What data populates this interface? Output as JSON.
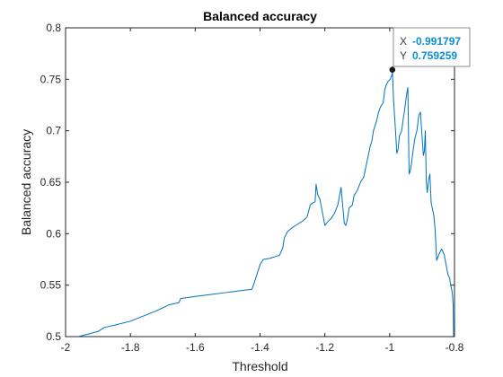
{
  "chart_data": {
    "type": "line",
    "title": "Balanced accuracy",
    "xlabel": "Threshold",
    "ylabel": "Balanced accuracy",
    "xlim": [
      -2,
      -0.8
    ],
    "ylim": [
      0.5,
      0.8
    ],
    "xticks": [
      -2,
      -1.8,
      -1.6,
      -1.4,
      -1.2,
      -1,
      -0.8
    ],
    "xtick_labels": [
      "-2",
      "-1.8",
      "-1.6",
      "-1.4",
      "-1.2",
      "-1",
      "-0.8"
    ],
    "yticks": [
      0.5,
      0.55,
      0.6,
      0.65,
      0.7,
      0.75,
      0.8
    ],
    "ytick_labels": [
      "0.5",
      "0.55",
      "0.6",
      "0.65",
      "0.7",
      "0.75",
      "0.8"
    ],
    "grid": false,
    "line_color": "#0072bd",
    "series": [
      {
        "x": [
          -1.96,
          -1.9,
          -1.88,
          -1.85,
          -1.8,
          -1.76,
          -1.72,
          -1.68,
          -1.65,
          -1.645,
          -1.6,
          -1.55,
          -1.5,
          -1.45,
          -1.425,
          -1.415,
          -1.4,
          -1.39,
          -1.37,
          -1.35,
          -1.34,
          -1.33,
          -1.325,
          -1.315,
          -1.3,
          -1.285,
          -1.27,
          -1.255,
          -1.25,
          -1.245,
          -1.237,
          -1.23,
          -1.227,
          -1.222,
          -1.215,
          -1.21,
          -1.2,
          -1.19,
          -1.18,
          -1.17,
          -1.16,
          -1.15,
          -1.14,
          -1.135,
          -1.13,
          -1.125,
          -1.115,
          -1.11,
          -1.1,
          -1.09,
          -1.08,
          -1.07,
          -1.06,
          -1.055,
          -1.05,
          -1.04,
          -1.035,
          -1.03,
          -1.025,
          -1.02,
          -1.015,
          -1.01,
          -1.005,
          -0.998,
          -0.996,
          -0.993,
          -0.991797,
          -0.988,
          -0.982,
          -0.978,
          -0.974,
          -0.97,
          -0.963,
          -0.958,
          -0.955,
          -0.952,
          -0.948,
          -0.944,
          -0.94,
          -0.935,
          -0.928,
          -0.922,
          -0.916,
          -0.91,
          -0.905,
          -0.9,
          -0.896,
          -0.893,
          -0.89,
          -0.887,
          -0.884,
          -0.88,
          -0.876,
          -0.872,
          -0.868,
          -0.864,
          -0.86,
          -0.855,
          -0.848,
          -0.84,
          -0.832,
          -0.826,
          -0.82,
          -0.815,
          -0.812,
          -0.808,
          -0.806,
          -0.804,
          -0.803
        ],
        "y": [
          0.5,
          0.505,
          0.509,
          0.511,
          0.515,
          0.52,
          0.525,
          0.531,
          0.533,
          0.537,
          0.539,
          0.541,
          0.543,
          0.545,
          0.546,
          0.555,
          0.57,
          0.575,
          0.576,
          0.578,
          0.579,
          0.586,
          0.596,
          0.602,
          0.606,
          0.609,
          0.612,
          0.616,
          0.622,
          0.628,
          0.63,
          0.631,
          0.648,
          0.638,
          0.633,
          0.625,
          0.608,
          0.612,
          0.615,
          0.62,
          0.628,
          0.645,
          0.61,
          0.608,
          0.615,
          0.625,
          0.628,
          0.637,
          0.642,
          0.65,
          0.655,
          0.67,
          0.685,
          0.69,
          0.7,
          0.71,
          0.717,
          0.722,
          0.725,
          0.727,
          0.74,
          0.745,
          0.748,
          0.75,
          0.752,
          0.754,
          0.759259,
          0.73,
          0.7,
          0.678,
          0.682,
          0.695,
          0.7,
          0.712,
          0.718,
          0.725,
          0.735,
          0.742,
          0.658,
          0.663,
          0.68,
          0.693,
          0.7,
          0.715,
          0.718,
          0.694,
          0.676,
          0.68,
          0.7,
          0.65,
          0.64,
          0.652,
          0.658,
          0.63,
          0.624,
          0.618,
          0.605,
          0.574,
          0.58,
          0.585,
          0.58,
          0.57,
          0.56,
          0.557,
          0.55,
          0.545,
          0.54,
          0.53,
          0.5
        ]
      }
    ],
    "datatip": {
      "x_key": "X",
      "x_value": "-0.991797",
      "y_key": "Y",
      "y_value": "0.759259",
      "x": -0.991797,
      "y": 0.759259
    }
  }
}
